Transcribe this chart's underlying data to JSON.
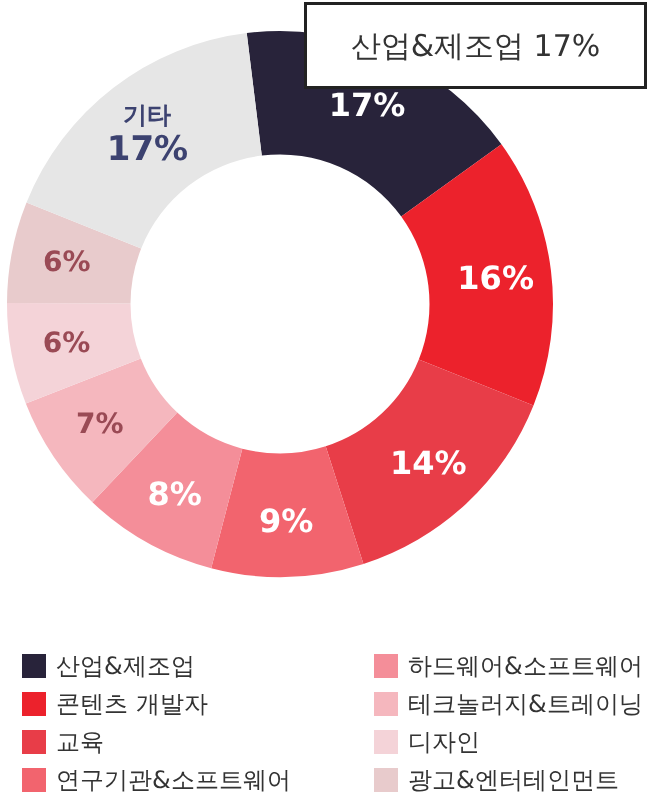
{
  "chart_data": {
    "type": "donut",
    "categories": [
      "산업&제조업",
      "콘텐츠 개발자",
      "교육",
      "연구기관&소프트웨어",
      "하드웨어&소프트웨어",
      "테크놀러지&트레이닝",
      "디자인",
      "광고&엔터테인먼트",
      "기타"
    ],
    "values": [
      17,
      16,
      14,
      9,
      8,
      7,
      6,
      6,
      17
    ],
    "value_labels": [
      "17%",
      "16%",
      "14%",
      "9%",
      "8%",
      "7%",
      "6%",
      "6%",
      "17%"
    ],
    "colors": [
      "#28233a",
      "#ec222c",
      "#e83d48",
      "#f2646e",
      "#f48e99",
      "#f5b7be",
      "#f4d3d8",
      "#e8cbcc",
      "#e6e6e6"
    ],
    "legend": "bottom",
    "annotations": [
      "산업&제조업 17%"
    ]
  }
}
